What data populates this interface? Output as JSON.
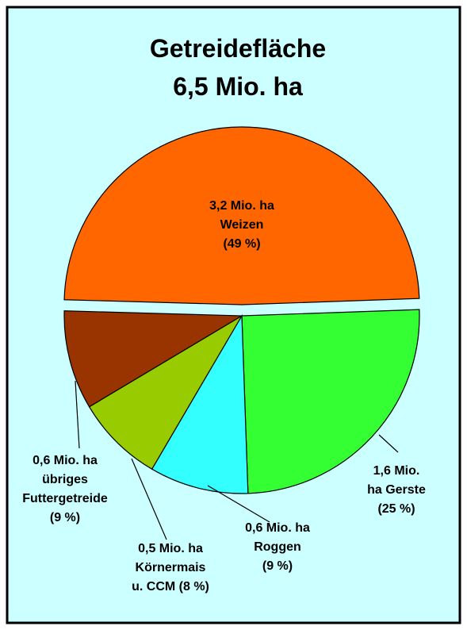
{
  "chart_data": {
    "type": "pie",
    "title": [
      "Getreidefläche",
      "6,5 Mio. ha"
    ],
    "labels": [
      [
        "3,2 Mio. ha",
        "Weizen",
        "(49 %)"
      ],
      [
        "1,6 Mio.",
        "ha Gerste",
        "(25 %)"
      ],
      [
        "0,6 Mio. ha",
        "Roggen",
        "(9 %)"
      ],
      [
        "0,5 Mio. ha",
        "Körnermais",
        "u. CCM (8 %)"
      ],
      [
        "0,6 Mio. ha",
        "übriges",
        "Futtergetreide",
        "(9 %)"
      ]
    ],
    "values": [
      49,
      25,
      9,
      8,
      9
    ],
    "colors": [
      "#ff6600",
      "#33ff33",
      "#33ffff",
      "#99cc00",
      "#993300"
    ],
    "exploded": [
      true,
      false,
      false,
      false,
      false
    ]
  }
}
